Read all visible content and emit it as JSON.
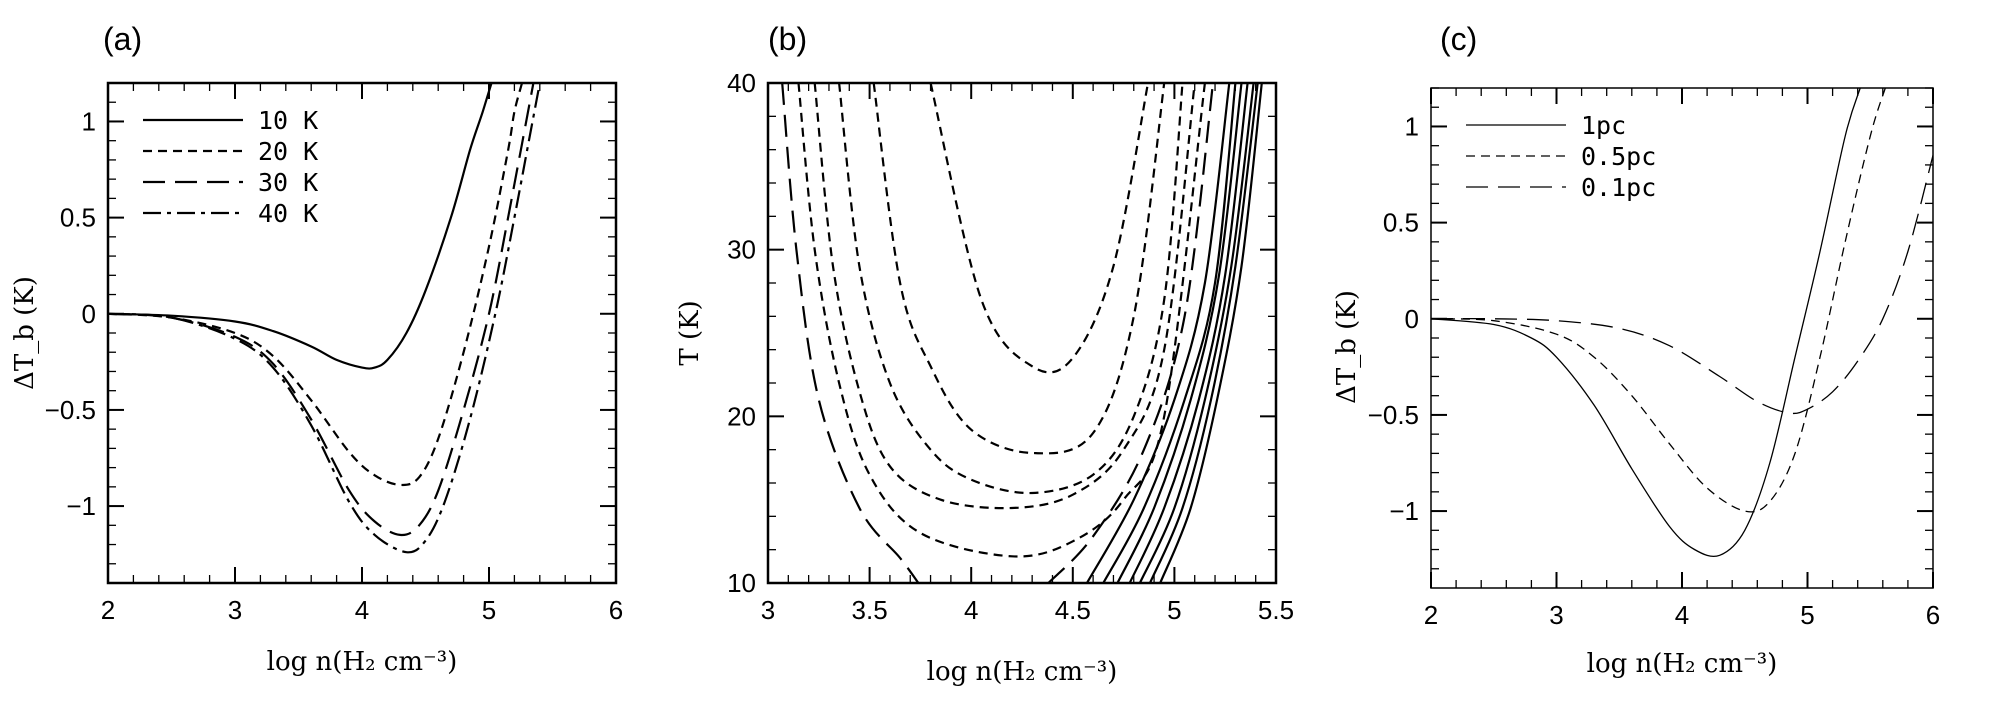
{
  "chart_data": [
    {
      "id": "a",
      "type": "line",
      "panel_label": "(a)",
      "xlabel": "log n(H₂ cm⁻³)",
      "ylabel": "ΔT_b (K)",
      "xlim": [
        2,
        6
      ],
      "ylim": [
        -1.4,
        1.2
      ],
      "xticks": [
        2,
        3,
        4,
        5,
        6
      ],
      "yticks": [
        1,
        0.5,
        0,
        -0.5,
        -1
      ],
      "legend_position": "top-left",
      "series": [
        {
          "name": "10 K",
          "dash": "solid",
          "x": [
            2.0,
            2.5,
            3.0,
            3.3,
            3.6,
            3.8,
            4.0,
            4.1,
            4.2,
            4.35,
            4.5,
            4.7,
            4.85,
            4.95,
            5.02
          ],
          "y": [
            0.0,
            -0.01,
            -0.04,
            -0.09,
            -0.17,
            -0.24,
            -0.28,
            -0.28,
            -0.24,
            -0.1,
            0.12,
            0.5,
            0.85,
            1.05,
            1.2
          ]
        },
        {
          "name": "20 K",
          "dash": "short",
          "x": [
            2.0,
            2.5,
            3.0,
            3.3,
            3.6,
            3.9,
            4.1,
            4.3,
            4.45,
            4.6,
            4.8,
            5.0,
            5.15,
            5.2,
            5.26
          ],
          "y": [
            0.0,
            -0.02,
            -0.1,
            -0.22,
            -0.45,
            -0.72,
            -0.84,
            -0.89,
            -0.85,
            -0.65,
            -0.2,
            0.35,
            0.85,
            1.05,
            1.2
          ]
        },
        {
          "name": "30 K",
          "dash": "long",
          "x": [
            2.0,
            2.5,
            3.0,
            3.3,
            3.6,
            3.9,
            4.1,
            4.3,
            4.45,
            4.6,
            4.8,
            5.0,
            5.15,
            5.25,
            5.35
          ],
          "y": [
            0.0,
            -0.02,
            -0.12,
            -0.26,
            -0.55,
            -0.92,
            -1.08,
            -1.15,
            -1.1,
            -0.92,
            -0.5,
            0.0,
            0.5,
            0.85,
            1.2
          ]
        },
        {
          "name": "40 K",
          "dash": "dashdot",
          "x": [
            2.0,
            2.5,
            3.0,
            3.3,
            3.6,
            3.9,
            4.1,
            4.35,
            4.5,
            4.65,
            4.85,
            5.05,
            5.2,
            5.3,
            5.4
          ],
          "y": [
            0.0,
            -0.02,
            -0.13,
            -0.28,
            -0.58,
            -0.98,
            -1.15,
            -1.24,
            -1.18,
            -0.98,
            -0.55,
            0.0,
            0.5,
            0.85,
            1.2
          ]
        }
      ]
    },
    {
      "id": "b",
      "type": "line",
      "panel_label": "(b)",
      "xlabel": "log n(H₂ cm⁻³)",
      "ylabel": "T (K)",
      "xlim": [
        3,
        5.5
      ],
      "ylim": [
        10,
        40
      ],
      "xticks": [
        3,
        3.5,
        4,
        4.5,
        5,
        5.5
      ],
      "yticks": [
        40,
        30,
        20,
        10
      ],
      "series": [
        {
          "dash": "short",
          "x": [
            3.8,
            4.05,
            4.3,
            4.5,
            4.7,
            4.87
          ],
          "y": [
            40,
            27,
            23,
            23.5,
            29,
            40
          ]
        },
        {
          "dash": "short",
          "x": [
            3.52,
            3.65,
            3.8,
            4.0,
            4.3,
            4.6,
            4.8,
            4.95
          ],
          "y": [
            40,
            28,
            23,
            19.2,
            17.8,
            19,
            26,
            40
          ]
        },
        {
          "dash": "short",
          "x": [
            3.35,
            3.45,
            3.6,
            3.8,
            4.0,
            4.3,
            4.6,
            4.8,
            4.95,
            5.04
          ],
          "y": [
            40,
            29,
            22,
            18,
            16.2,
            15.4,
            16.5,
            20,
            27,
            40
          ]
        },
        {
          "dash": "short",
          "x": [
            3.23,
            3.32,
            3.45,
            3.6,
            3.85,
            4.2,
            4.5,
            4.75,
            4.95,
            5.1
          ],
          "y": [
            40,
            29,
            21.5,
            17,
            15,
            14.5,
            15.3,
            18,
            24,
            40
          ]
        },
        {
          "dash": "short",
          "x": [
            3.15,
            3.23,
            3.35,
            3.5,
            3.75,
            4.2,
            4.5,
            4.75,
            4.95,
            5.15
          ],
          "y": [
            40,
            30,
            22,
            16.5,
            13,
            11.6,
            12.5,
            15,
            20,
            40
          ]
        },
        {
          "dash": "long",
          "x": [
            3.07,
            3.14,
            3.25,
            3.45,
            3.65,
            3.74
          ],
          "y": [
            40,
            30,
            21,
            14.5,
            11.5,
            10
          ]
        },
        {
          "dash": "long",
          "x": [
            4.38,
            4.6,
            4.85,
            5.05,
            5.19
          ],
          "y": [
            10,
            12.8,
            18,
            26,
            40
          ]
        },
        {
          "dash": "solid",
          "x": [
            4.57,
            4.8,
            5.0,
            5.15,
            5.27
          ],
          "y": [
            10,
            15,
            21,
            28,
            40
          ]
        },
        {
          "dash": "solid",
          "x": [
            4.65,
            4.85,
            5.05,
            5.2,
            5.3
          ],
          "y": [
            10,
            14.5,
            21,
            28,
            40
          ]
        },
        {
          "dash": "solid",
          "x": [
            4.72,
            4.9,
            5.08,
            5.22,
            5.33
          ],
          "y": [
            10,
            14.5,
            21,
            28.5,
            40
          ]
        },
        {
          "dash": "solid",
          "x": [
            4.78,
            4.95,
            5.12,
            5.25,
            5.36
          ],
          "y": [
            10,
            14.5,
            21,
            28.5,
            40
          ]
        },
        {
          "dash": "solid",
          "x": [
            4.83,
            5.0,
            5.15,
            5.28,
            5.39
          ],
          "y": [
            10,
            14.5,
            21,
            29,
            40
          ]
        },
        {
          "dash": "solid",
          "x": [
            4.88,
            5.04,
            5.18,
            5.3,
            5.41
          ],
          "y": [
            10,
            14.5,
            21,
            29,
            40
          ]
        },
        {
          "dash": "solid",
          "x": [
            4.93,
            5.08,
            5.21,
            5.33,
            5.43
          ],
          "y": [
            10,
            14.5,
            21,
            29,
            40
          ]
        }
      ]
    },
    {
      "id": "c",
      "type": "line",
      "panel_label": "(c)",
      "xlabel": "log n(H₂ cm⁻³)",
      "ylabel": "ΔT_b (K)",
      "xlim": [
        2,
        6
      ],
      "ylim": [
        -1.4,
        1.2
      ],
      "xticks": [
        2,
        3,
        4,
        5,
        6
      ],
      "yticks": [
        1,
        0.5,
        0,
        -0.5,
        -1
      ],
      "legend_position": "top-left",
      "series": [
        {
          "name": "1pc",
          "dash": "solid",
          "x": [
            2.0,
            2.5,
            2.8,
            3.0,
            3.3,
            3.6,
            3.9,
            4.1,
            4.3,
            4.5,
            4.7,
            4.9,
            5.1,
            5.3,
            5.42
          ],
          "y": [
            0.0,
            -0.03,
            -0.1,
            -0.2,
            -0.45,
            -0.78,
            -1.08,
            -1.2,
            -1.23,
            -1.1,
            -0.75,
            -0.2,
            0.35,
            0.95,
            1.2
          ]
        },
        {
          "name": "0.5pc",
          "dash": "short",
          "x": [
            2.0,
            2.5,
            3.0,
            3.3,
            3.6,
            3.9,
            4.2,
            4.5,
            4.7,
            4.9,
            5.1,
            5.3,
            5.5,
            5.62
          ],
          "y": [
            0.0,
            -0.01,
            -0.08,
            -0.2,
            -0.4,
            -0.65,
            -0.88,
            -1.0,
            -0.95,
            -0.7,
            -0.2,
            0.4,
            0.95,
            1.2
          ]
        },
        {
          "name": "0.1pc",
          "dash": "long",
          "x": [
            2.0,
            2.5,
            3.0,
            3.5,
            3.9,
            4.3,
            4.6,
            4.85,
            5.0,
            5.2,
            5.4,
            5.6,
            5.8,
            6.0
          ],
          "y": [
            0.0,
            0.0,
            -0.01,
            -0.05,
            -0.14,
            -0.3,
            -0.43,
            -0.49,
            -0.47,
            -0.38,
            -0.22,
            0.0,
            0.35,
            0.85
          ]
        }
      ]
    }
  ]
}
